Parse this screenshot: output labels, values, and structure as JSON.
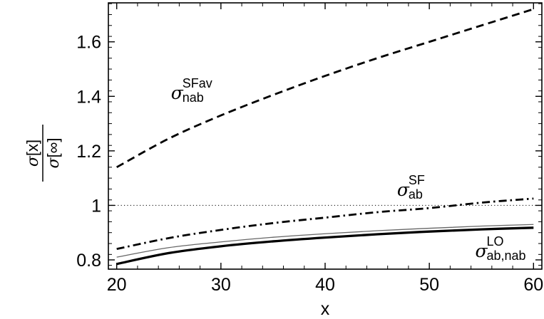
{
  "chart_data": {
    "type": "line",
    "xlabel": "x",
    "ylabel": {
      "symbol": "σ",
      "numerator_arg": "[x]",
      "denominator_arg": "[∞]"
    },
    "xlim": [
      19.2,
      60.8
    ],
    "ylim": [
      0.766,
      1.743
    ],
    "x_ticks": [
      20,
      30,
      40,
      50,
      60
    ],
    "y_ticks": [
      0.8,
      1,
      1.2,
      1.4,
      1.6
    ],
    "x_tick_labels": [
      "20",
      "30",
      "40",
      "50",
      "60"
    ],
    "y_tick_labels": [
      "0.8",
      "1",
      "1.2",
      "1.4",
      "1.6"
    ],
    "series": [
      {
        "style": "dashed",
        "color": "#000000",
        "x": [
          20,
          25,
          30,
          35,
          40,
          45,
          50,
          55,
          60
        ],
        "y": [
          1.14,
          1.245,
          1.33,
          1.405,
          1.475,
          1.54,
          1.6,
          1.66,
          1.72
        ]
      },
      {
        "style": "dash-dot",
        "color": "#000000",
        "x": [
          20,
          25,
          30,
          35,
          40,
          45,
          50,
          55,
          60
        ],
        "y": [
          0.84,
          0.88,
          0.91,
          0.935,
          0.955,
          0.975,
          0.99,
          1.01,
          1.025
        ]
      },
      {
        "style": "thin-solid",
        "color": "#666666",
        "x": [
          20,
          25,
          30,
          35,
          40,
          45,
          50,
          55,
          60
        ],
        "y": [
          0.81,
          0.845,
          0.866,
          0.883,
          0.896,
          0.907,
          0.916,
          0.924,
          0.93
        ]
      },
      {
        "style": "thick-solid",
        "color": "#000000",
        "x": [
          20,
          25,
          30,
          35,
          40,
          45,
          50,
          55,
          60
        ],
        "y": [
          0.785,
          0.825,
          0.85,
          0.868,
          0.882,
          0.894,
          0.904,
          0.912,
          0.918
        ]
      }
    ],
    "reference_lines": [
      {
        "y": 1,
        "style": "dotted",
        "color": "#000000"
      }
    ],
    "annotations": [
      {
        "base": "σ",
        "sup": "SFav",
        "sub": "nab",
        "x": 25.2,
        "y": 1.39
      },
      {
        "base": "σ",
        "sup": "SF",
        "sub": "ab",
        "x": 46.9,
        "y": 1.035
      },
      {
        "base": "σ",
        "sup": "LO",
        "sub": "ab,nab",
        "x": 54.4,
        "y": 0.81
      }
    ],
    "grid": false
  }
}
